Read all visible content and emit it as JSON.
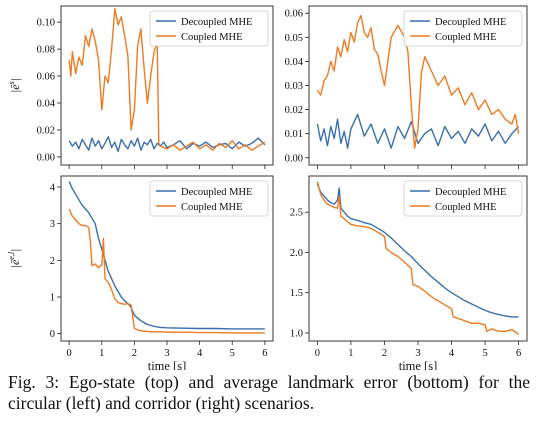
{
  "figure": {
    "caption_line1": "Fig. 3: Ego-state (top) and average landmark error (bottom) for the",
    "caption_line2": "circular (left) and corridor (right) scenarios."
  },
  "colors": {
    "decoupled": "#3a6fb0",
    "coupled": "#ee7a22"
  },
  "chart_data": [
    {
      "type": "line",
      "panel": "top-left",
      "ylabel": "|ē^s|",
      "xlabel": "",
      "xlim": [
        -0.25,
        6.25
      ],
      "ylim": [
        -0.006,
        0.112
      ],
      "yticks": [
        0.0,
        0.02,
        0.04,
        0.06,
        0.08,
        0.1
      ],
      "ytick_labels": [
        "0.00",
        "0.02",
        "0.04",
        "0.06",
        "0.08",
        "0.10"
      ],
      "xticks": [
        0,
        1,
        2,
        3,
        4,
        5,
        6
      ],
      "xtick_labels": [],
      "legend": "top-right",
      "series": [
        {
          "name": "Decoupled MHE",
          "color": "#3a6fb0",
          "x": [
            0,
            0.1,
            0.2,
            0.3,
            0.4,
            0.5,
            0.6,
            0.7,
            0.8,
            0.9,
            1.0,
            1.1,
            1.2,
            1.3,
            1.4,
            1.5,
            1.6,
            1.7,
            1.8,
            1.9,
            2.0,
            2.1,
            2.2,
            2.3,
            2.4,
            2.5,
            2.6,
            2.7,
            2.8,
            2.9,
            3.0,
            3.2,
            3.4,
            3.6,
            3.8,
            4.0,
            4.2,
            4.4,
            4.6,
            4.8,
            5.0,
            5.2,
            5.4,
            5.6,
            5.8,
            6.0
          ],
          "y": [
            0.012,
            0.008,
            0.011,
            0.006,
            0.013,
            0.009,
            0.005,
            0.014,
            0.008,
            0.012,
            0.006,
            0.01,
            0.015,
            0.007,
            0.011,
            0.004,
            0.013,
            0.009,
            0.006,
            0.012,
            0.008,
            0.014,
            0.005,
            0.011,
            0.009,
            0.013,
            0.006,
            0.01,
            0.008,
            0.011,
            0.007,
            0.009,
            0.012,
            0.006,
            0.01,
            0.008,
            0.011,
            0.007,
            0.009,
            0.01,
            0.006,
            0.011,
            0.008,
            0.01,
            0.014,
            0.009
          ]
        },
        {
          "name": "Coupled MHE",
          "color": "#ee7a22",
          "x": [
            0,
            0.05,
            0.1,
            0.2,
            0.3,
            0.4,
            0.5,
            0.6,
            0.7,
            0.8,
            0.9,
            1.0,
            1.1,
            1.2,
            1.3,
            1.4,
            1.5,
            1.6,
            1.7,
            1.8,
            1.9,
            2.0,
            2.1,
            2.2,
            2.3,
            2.4,
            2.5,
            2.6,
            2.7,
            2.75,
            2.8,
            3.0,
            3.2,
            3.4,
            3.6,
            3.8,
            4.0,
            4.2,
            4.4,
            4.6,
            4.8,
            5.0,
            5.2,
            5.4,
            5.6,
            5.8,
            6.0
          ],
          "y": [
            0.072,
            0.06,
            0.078,
            0.062,
            0.074,
            0.068,
            0.09,
            0.082,
            0.095,
            0.086,
            0.072,
            0.035,
            0.06,
            0.055,
            0.08,
            0.11,
            0.098,
            0.104,
            0.09,
            0.075,
            0.02,
            0.035,
            0.082,
            0.095,
            0.065,
            0.04,
            0.06,
            0.078,
            0.085,
            0.01,
            0.008,
            0.006,
            0.009,
            0.005,
            0.008,
            0.011,
            0.006,
            0.009,
            0.005,
            0.01,
            0.007,
            0.012,
            0.006,
            0.009,
            0.005,
            0.008,
            0.011
          ]
        }
      ]
    },
    {
      "type": "line",
      "panel": "top-right",
      "ylabel": "",
      "xlabel": "",
      "xlim": [
        -0.25,
        6.25
      ],
      "ylim": [
        -0.003,
        0.063
      ],
      "yticks": [
        0.0,
        0.01,
        0.02,
        0.03,
        0.04,
        0.05,
        0.06
      ],
      "ytick_labels": [
        "0.00",
        "0.01",
        "0.02",
        "0.03",
        "0.04",
        "0.05",
        "0.06"
      ],
      "xticks": [
        0,
        1,
        2,
        3,
        4,
        5,
        6
      ],
      "xtick_labels": [],
      "legend": "top-right",
      "series": [
        {
          "name": "Decoupled MHE",
          "color": "#3a6fb0",
          "x": [
            0,
            0.1,
            0.2,
            0.3,
            0.4,
            0.5,
            0.6,
            0.7,
            0.8,
            0.9,
            1.0,
            1.2,
            1.4,
            1.6,
            1.8,
            2.0,
            2.2,
            2.4,
            2.6,
            2.8,
            3.0,
            3.2,
            3.4,
            3.6,
            3.8,
            4.0,
            4.2,
            4.4,
            4.6,
            4.8,
            5.0,
            5.2,
            5.4,
            5.6,
            5.8,
            6.0
          ],
          "y": [
            0.014,
            0.007,
            0.012,
            0.005,
            0.013,
            0.008,
            0.016,
            0.006,
            0.011,
            0.004,
            0.012,
            0.018,
            0.009,
            0.014,
            0.006,
            0.012,
            0.004,
            0.013,
            0.008,
            0.015,
            0.006,
            0.01,
            0.012,
            0.005,
            0.013,
            0.008,
            0.011,
            0.006,
            0.012,
            0.009,
            0.014,
            0.007,
            0.011,
            0.006,
            0.01,
            0.013
          ]
        },
        {
          "name": "Coupled MHE",
          "color": "#ee7a22",
          "x": [
            0,
            0.1,
            0.2,
            0.3,
            0.4,
            0.5,
            0.6,
            0.7,
            0.8,
            0.9,
            1.0,
            1.1,
            1.2,
            1.3,
            1.4,
            1.5,
            1.6,
            1.7,
            1.8,
            1.9,
            2.0,
            2.2,
            2.4,
            2.6,
            2.7,
            2.8,
            2.9,
            3.0,
            3.1,
            3.2,
            3.4,
            3.6,
            3.8,
            4.0,
            4.2,
            4.4,
            4.6,
            4.8,
            5.0,
            5.2,
            5.4,
            5.6,
            5.8,
            5.9,
            6.0
          ],
          "y": [
            0.028,
            0.026,
            0.032,
            0.034,
            0.04,
            0.036,
            0.046,
            0.042,
            0.049,
            0.044,
            0.052,
            0.048,
            0.056,
            0.059,
            0.052,
            0.05,
            0.054,
            0.045,
            0.043,
            0.036,
            0.03,
            0.05,
            0.055,
            0.05,
            0.044,
            0.022,
            0.004,
            0.012,
            0.035,
            0.042,
            0.036,
            0.03,
            0.034,
            0.026,
            0.029,
            0.022,
            0.027,
            0.02,
            0.024,
            0.018,
            0.02,
            0.016,
            0.014,
            0.018,
            0.01
          ]
        }
      ]
    },
    {
      "type": "line",
      "panel": "bottom-left",
      "ylabel": "|ē^{e,l}|",
      "xlabel": "time [s]",
      "xlim": [
        -0.25,
        6.25
      ],
      "ylim": [
        -0.2,
        4.3
      ],
      "yticks": [
        0,
        1,
        2,
        3,
        4
      ],
      "ytick_labels": [
        "0",
        "1",
        "2",
        "3",
        "4"
      ],
      "xticks": [
        0,
        1,
        2,
        3,
        4,
        5,
        6
      ],
      "xtick_labels": [
        "0",
        "1",
        "2",
        "3",
        "4",
        "5",
        "6"
      ],
      "legend": "top-right",
      "series": [
        {
          "name": "Decoupled MHE",
          "color": "#3a6fb0",
          "x": [
            0,
            0.1,
            0.2,
            0.3,
            0.4,
            0.5,
            0.6,
            0.7,
            0.8,
            0.9,
            1.0,
            1.1,
            1.2,
            1.3,
            1.4,
            1.5,
            1.6,
            1.7,
            1.8,
            1.9,
            2.0,
            2.2,
            2.4,
            2.6,
            2.8,
            3.0,
            3.5,
            4.0,
            4.5,
            5.0,
            5.5,
            6.0
          ],
          "y": [
            4.15,
            3.95,
            3.8,
            3.65,
            3.5,
            3.4,
            3.3,
            3.15,
            3.0,
            2.6,
            2.3,
            2.0,
            1.7,
            1.5,
            1.3,
            1.15,
            1.0,
            0.9,
            0.82,
            0.72,
            0.5,
            0.35,
            0.25,
            0.2,
            0.17,
            0.16,
            0.15,
            0.14,
            0.14,
            0.13,
            0.13,
            0.13
          ]
        },
        {
          "name": "Coupled MHE",
          "color": "#ee7a22",
          "x": [
            0,
            0.1,
            0.2,
            0.3,
            0.4,
            0.5,
            0.6,
            0.65,
            0.7,
            0.8,
            0.9,
            1.0,
            1.05,
            1.1,
            1.2,
            1.3,
            1.4,
            1.5,
            1.6,
            1.7,
            1.8,
            1.9,
            2.0,
            2.1,
            2.2,
            2.4,
            2.6,
            2.8,
            3.0,
            3.5,
            4.0,
            4.5,
            5.0,
            5.5,
            6.0
          ],
          "y": [
            3.4,
            3.2,
            3.1,
            3.0,
            2.95,
            2.95,
            2.9,
            2.5,
            1.85,
            1.9,
            1.8,
            1.88,
            2.6,
            1.5,
            1.4,
            1.2,
            0.95,
            0.85,
            0.82,
            0.8,
            0.82,
            0.78,
            0.15,
            0.1,
            0.08,
            0.06,
            0.05,
            0.05,
            0.04,
            0.04,
            0.03,
            0.03,
            0.02,
            0.02,
            0.02
          ]
        }
      ]
    },
    {
      "type": "line",
      "panel": "bottom-right",
      "ylabel": "",
      "xlabel": "time [s]",
      "xlim": [
        -0.25,
        6.25
      ],
      "ylim": [
        0.9,
        2.95
      ],
      "yticks": [
        1.0,
        1.5,
        2.0,
        2.5
      ],
      "ytick_labels": [
        "1.0",
        "1.5",
        "2.0",
        "2.5"
      ],
      "xticks": [
        0,
        1,
        2,
        3,
        4,
        5,
        6
      ],
      "xtick_labels": [
        "0",
        "1",
        "2",
        "3",
        "4",
        "5",
        "6"
      ],
      "legend": "top-right",
      "series": [
        {
          "name": "Decoupled MHE",
          "color": "#3a6fb0",
          "x": [
            0,
            0.1,
            0.2,
            0.3,
            0.4,
            0.5,
            0.6,
            0.65,
            0.7,
            0.8,
            0.9,
            1.0,
            1.2,
            1.4,
            1.6,
            1.8,
            2.0,
            2.2,
            2.4,
            2.6,
            2.8,
            3.0,
            3.2,
            3.4,
            3.6,
            3.8,
            4.0,
            4.2,
            4.4,
            4.6,
            4.8,
            5.0,
            5.2,
            5.4,
            5.6,
            5.8,
            6.0
          ],
          "y": [
            2.85,
            2.75,
            2.7,
            2.65,
            2.62,
            2.6,
            2.65,
            2.8,
            2.55,
            2.5,
            2.45,
            2.42,
            2.4,
            2.37,
            2.35,
            2.3,
            2.25,
            2.18,
            2.1,
            2.02,
            1.95,
            1.86,
            1.78,
            1.7,
            1.63,
            1.56,
            1.5,
            1.45,
            1.4,
            1.36,
            1.32,
            1.28,
            1.25,
            1.23,
            1.21,
            1.2,
            1.2
          ]
        },
        {
          "name": "Coupled MHE",
          "color": "#ee7a22",
          "x": [
            0,
            0.1,
            0.2,
            0.3,
            0.4,
            0.5,
            0.6,
            0.65,
            0.7,
            0.8,
            0.9,
            1.0,
            1.2,
            1.4,
            1.6,
            1.8,
            2.0,
            2.05,
            2.2,
            2.4,
            2.6,
            2.8,
            2.85,
            3.0,
            3.2,
            3.4,
            3.6,
            3.8,
            4.0,
            4.05,
            4.2,
            4.4,
            4.6,
            4.8,
            5.0,
            5.05,
            5.2,
            5.4,
            5.6,
            5.8,
            5.95,
            6.0
          ],
          "y": [
            2.88,
            2.72,
            2.65,
            2.6,
            2.58,
            2.56,
            2.55,
            2.7,
            2.45,
            2.42,
            2.38,
            2.35,
            2.33,
            2.32,
            2.3,
            2.25,
            2.2,
            2.05,
            2.0,
            1.95,
            1.88,
            1.8,
            1.6,
            1.58,
            1.52,
            1.45,
            1.4,
            1.35,
            1.3,
            1.2,
            1.18,
            1.15,
            1.12,
            1.12,
            1.1,
            1.02,
            1.05,
            1.02,
            1.02,
            1.04,
            1.0,
            0.98
          ]
        }
      ]
    }
  ]
}
